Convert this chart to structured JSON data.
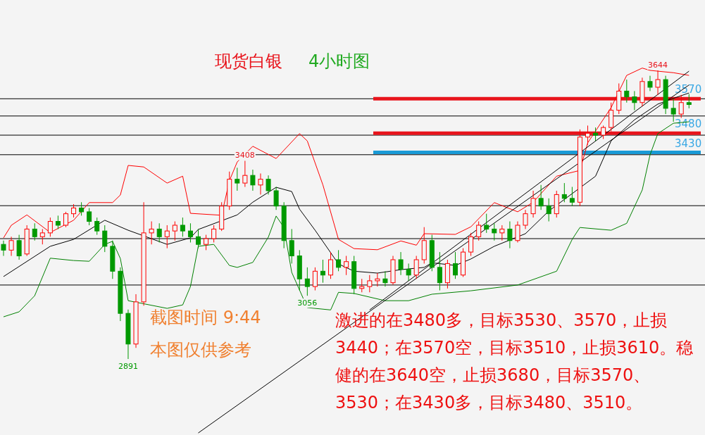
{
  "chart_data": {
    "type": "candlestick",
    "title": "现货白银",
    "subtitle": "4小时图",
    "categories": [
      null,
      null,
      null,
      null,
      null,
      null,
      null,
      null,
      null,
      null,
      null,
      null,
      null,
      null,
      null,
      null,
      null,
      null,
      null,
      null,
      null,
      null,
      null,
      null,
      null,
      null,
      null,
      null,
      null,
      null,
      null,
      null,
      null,
      null,
      null,
      null,
      null,
      null,
      null,
      null,
      null,
      null,
      null,
      null,
      null,
      null,
      null,
      null,
      null,
      null,
      null,
      null,
      null,
      null,
      null,
      null,
      null,
      null,
      null,
      null,
      null,
      null,
      null,
      null,
      null,
      null,
      null,
      null,
      null,
      null,
      null,
      null,
      null,
      null,
      null,
      null,
      null,
      null,
      null,
      null,
      null,
      null,
      null,
      null,
      null,
      null,
      null,
      null,
      null
    ],
    "ohlc": [
      [
        3190,
        3200,
        3160,
        3175
      ],
      [
        3175,
        3210,
        3160,
        3200
      ],
      [
        3200,
        3215,
        3150,
        3160
      ],
      [
        3165,
        3240,
        3160,
        3230
      ],
      [
        3230,
        3245,
        3200,
        3210
      ],
      [
        3210,
        3230,
        3190,
        3220
      ],
      [
        3220,
        3260,
        3210,
        3250
      ],
      [
        3250,
        3265,
        3230,
        3240
      ],
      [
        3240,
        3275,
        3235,
        3270
      ],
      [
        3270,
        3295,
        3260,
        3285
      ],
      [
        3285,
        3300,
        3265,
        3275
      ],
      [
        3275,
        3285,
        3240,
        3250
      ],
      [
        3250,
        3260,
        3215,
        3225
      ],
      [
        3225,
        3240,
        3170,
        3185
      ],
      [
        3185,
        3200,
        3100,
        3120
      ],
      [
        3120,
        3130,
        2990,
        3010
      ],
      [
        3010,
        3020,
        2891,
        2930
      ],
      [
        2930,
        3060,
        2920,
        3040
      ],
      [
        3040,
        3300,
        3030,
        3220
      ],
      [
        3220,
        3250,
        3190,
        3230
      ],
      [
        3230,
        3245,
        3195,
        3210
      ],
      [
        3210,
        3240,
        3180,
        3225
      ],
      [
        3225,
        3250,
        3200,
        3240
      ],
      [
        3240,
        3260,
        3210,
        3225
      ],
      [
        3225,
        3245,
        3195,
        3210
      ],
      [
        3210,
        3230,
        3180,
        3190
      ],
      [
        3190,
        3215,
        3175,
        3205
      ],
      [
        3205,
        3240,
        3195,
        3230
      ],
      [
        3230,
        3300,
        3225,
        3290
      ],
      [
        3290,
        3380,
        3280,
        3360
      ],
      [
        3360,
        3390,
        3330,
        3350
      ],
      [
        3350,
        3408,
        3340,
        3370
      ],
      [
        3370,
        3385,
        3330,
        3345
      ],
      [
        3345,
        3375,
        3320,
        3360
      ],
      [
        3360,
        3370,
        3320,
        3330
      ],
      [
        3330,
        3340,
        3280,
        3290
      ],
      [
        3290,
        3300,
        3180,
        3200
      ],
      [
        3200,
        3230,
        3140,
        3160
      ],
      [
        3160,
        3175,
        3070,
        3100
      ],
      [
        3100,
        3130,
        3056,
        3080
      ],
      [
        3080,
        3130,
        3070,
        3120
      ],
      [
        3120,
        3150,
        3090,
        3110
      ],
      [
        3110,
        3170,
        3100,
        3150
      ],
      [
        3150,
        3175,
        3120,
        3130
      ],
      [
        3130,
        3160,
        3110,
        3145
      ],
      [
        3145,
        3160,
        3060,
        3075
      ],
      [
        3075,
        3100,
        3065,
        3080
      ],
      [
        3080,
        3110,
        3065,
        3095
      ],
      [
        3095,
        3115,
        3080,
        3100
      ],
      [
        3100,
        3120,
        3080,
        3090
      ],
      [
        3090,
        3160,
        3085,
        3150
      ],
      [
        3150,
        3170,
        3110,
        3125
      ],
      [
        3125,
        3140,
        3095,
        3110
      ],
      [
        3110,
        3160,
        3100,
        3150
      ],
      [
        3150,
        3235,
        3140,
        3200
      ],
      [
        3200,
        3215,
        3120,
        3130
      ],
      [
        3130,
        3170,
        3070,
        3090
      ],
      [
        3090,
        3150,
        3075,
        3140
      ],
      [
        3140,
        3170,
        3100,
        3110
      ],
      [
        3110,
        3180,
        3105,
        3170
      ],
      [
        3170,
        3220,
        3160,
        3210
      ],
      [
        3210,
        3250,
        3200,
        3240
      ],
      [
        3240,
        3270,
        3220,
        3230
      ],
      [
        3230,
        3245,
        3200,
        3220
      ],
      [
        3220,
        3240,
        3200,
        3230
      ],
      [
        3230,
        3250,
        3180,
        3200
      ],
      [
        3200,
        3250,
        3195,
        3240
      ],
      [
        3240,
        3280,
        3230,
        3270
      ],
      [
        3270,
        3330,
        3260,
        3310
      ],
      [
        3310,
        3345,
        3280,
        3290
      ],
      [
        3290,
        3310,
        3250,
        3270
      ],
      [
        3270,
        3330,
        3260,
        3320
      ],
      [
        3320,
        3350,
        3300,
        3310
      ],
      [
        3310,
        3340,
        3290,
        3300
      ],
      [
        3300,
        3490,
        3290,
        3470
      ],
      [
        3470,
        3500,
        3450,
        3480
      ],
      [
        3480,
        3495,
        3460,
        3475
      ],
      [
        3475,
        3500,
        3465,
        3495
      ],
      [
        3495,
        3560,
        3485,
        3540
      ],
      [
        3540,
        3610,
        3530,
        3590
      ],
      [
        3590,
        3620,
        3560,
        3575
      ],
      [
        3575,
        3590,
        3540,
        3560
      ],
      [
        3560,
        3625,
        3550,
        3615
      ],
      [
        3615,
        3630,
        3590,
        3600
      ],
      [
        3600,
        3644,
        3580,
        3620
      ],
      [
        3620,
        3630,
        3530,
        3545
      ],
      [
        3545,
        3570,
        3510,
        3530
      ],
      [
        3530,
        3580,
        3520,
        3560
      ],
      [
        3560,
        3582,
        3545,
        3555
      ]
    ],
    "series": [
      {
        "type": "line",
        "color": "#ff0000",
        "values": [
          3207,
          3240,
          null,
          3267,
          null,
          null,
          3221,
          null,
          null,
          3253,
          null,
          3299,
          null,
          null,
          3299,
          3319,
          3396,
          null,
          3392,
          null,
          null,
          3350,
          null,
          3368,
          3271,
          null,
          null,
          null,
          3266,
          3356,
          3405,
          null,
          3446,
          null,
          null,
          3414,
          null,
          null,
          3479,
          3460,
          null,
          3345,
          null,
          3203,
          null,
          3179,
          null,
          null,
          3176,
          null,
          null,
          3199,
          null,
          3188,
          3218,
          null,
          null,
          null,
          3216,
          null,
          3236,
          null,
          null,
          3299,
          null,
          null,
          3275,
          null,
          3300,
          null,
          null,
          3368,
          null,
          null,
          3383,
          3455,
          null,
          null,
          3547,
          null,
          3631,
          null,
          3650,
          3644,
          null,
          null,
          3638,
          null,
          3631
        ]
      },
      {
        "type": "line",
        "color": "#000000",
        "values": [
          3106,
          null,
          null,
          null,
          null,
          null,
          3185,
          null,
          null,
          3203,
          null,
          null,
          null,
          3253,
          null,
          null,
          3227,
          null,
          null,
          null,
          null,
          3190,
          null,
          null,
          3207,
          3229,
          null,
          null,
          null,
          null,
          3267,
          null,
          3300,
          null,
          null,
          3339,
          null,
          3328,
          3282,
          null,
          3227,
          null,
          null,
          3139,
          null,
          3120,
          null,
          null,
          3115,
          null,
          null,
          3124,
          null,
          null,
          3130,
          3142,
          null,
          null,
          3135,
          null,
          3152,
          null,
          null,
          3185,
          null,
          null,
          null,
          3218,
          null,
          null,
          3277,
          null,
          null,
          null,
          null,
          null,
          3368,
          null,
          3460,
          null,
          null,
          3515,
          null,
          null,
          3556,
          null,
          3571,
          null,
          3585
        ]
      },
      {
        "type": "line",
        "color": "#008000",
        "values": [
          3001,
          null,
          3014,
          null,
          3056,
          null,
          3154,
          null,
          null,
          3148,
          null,
          3146,
          null,
          3190,
          3198,
          3153,
          3043,
          null,
          null,
          null,
          null,
          3023,
          null,
          3032,
          3080,
          3185,
          null,
          3190,
          null,
          3135,
          3130,
          null,
          3143,
          null,
          3209,
          3264,
          3234,
          3117,
          null,
          3025,
          null,
          null,
          3019,
          3065,
          null,
          3062,
          null,
          null,
          null,
          3043,
          null,
          null,
          3043,
          null,
          null,
          3060,
          null,
          null,
          null,
          null,
          3069,
          null,
          null,
          null,
          null,
          null,
          3084,
          null,
          null,
          null,
          null,
          3120,
          null,
          3203,
          3234,
          null,
          null,
          null,
          3227,
          null,
          3245,
          null,
          3332,
          3424,
          3479,
          null,
          3506,
          null,
          3510
        ]
      },
      {
        "type": "line",
        "color": "#000000",
        "values": [
          null,
          null,
          null,
          null,
          null,
          null,
          null,
          null,
          null,
          null,
          null,
          null,
          null,
          null,
          null,
          null,
          null,
          null,
          null,
          null,
          null,
          null,
          null,
          null,
          null,
          2698,
          null,
          null,
          null,
          null,
          null,
          null,
          null,
          null,
          null,
          null,
          null,
          null,
          null,
          null,
          null,
          null,
          null,
          null,
          null,
          null,
          null,
          null,
          null,
          null,
          null,
          null,
          null,
          null,
          null,
          null,
          null,
          null,
          null,
          null,
          null,
          null,
          null,
          null,
          null,
          null,
          null,
          null,
          null,
          null,
          null,
          null,
          null,
          null,
          null,
          null,
          null,
          null,
          null,
          null,
          null,
          null,
          null,
          null,
          null,
          null,
          null,
          null,
          3606
        ]
      },
      {
        "type": "line",
        "color": "#000000",
        "values": [
          null,
          null,
          null,
          null,
          null,
          null,
          null,
          null,
          null,
          null,
          null,
          null,
          null,
          null,
          null,
          null,
          null,
          null,
          null,
          null,
          null,
          null,
          null,
          null,
          null,
          null,
          null,
          null,
          null,
          null,
          null,
          null,
          null,
          null,
          null,
          null,
          null,
          null,
          null,
          null,
          null,
          null,
          null,
          null,
          null,
          null,
          null,
          3019,
          null,
          null,
          null,
          null,
          null,
          null,
          null,
          null,
          null,
          null,
          null,
          null,
          null,
          null,
          null,
          null,
          null,
          null,
          null,
          null,
          null,
          null,
          null,
          null,
          null,
          null,
          null,
          null,
          null,
          null,
          null,
          null,
          null,
          null,
          null,
          null,
          null,
          null,
          null,
          null,
          3642
        ]
      }
    ],
    "ref_lines": [
      {
        "axis": "y",
        "value": 3570,
        "color": "#000000"
      },
      {
        "axis": "y",
        "value": 3525,
        "color": "#000000"
      },
      {
        "axis": "y",
        "value": 3475,
        "color": "#000000"
      },
      {
        "axis": "y",
        "value": 3424,
        "color": "#000000"
      },
      {
        "axis": "y",
        "value": 3291,
        "color": "#000000"
      },
      {
        "axis": "y",
        "value": 3205,
        "color": "#000000"
      },
      {
        "axis": "y",
        "value": 3084,
        "color": "#000000"
      },
      {
        "axis": "y",
        "value": 3570,
        "label": "3570",
        "color": "#e8141c"
      },
      {
        "axis": "y",
        "value": 3480,
        "label": "3480",
        "color": "#e8141c"
      },
      {
        "axis": "y",
        "value": 3430,
        "label": "3430",
        "color": "#1a9ad6"
      }
    ],
    "annotations": [
      {
        "text": "3644",
        "y": 3644
      },
      {
        "text": "3408",
        "y": 3408
      },
      {
        "text": "3056",
        "y": 3056
      },
      {
        "text": "2891",
        "y": 2891
      },
      "截图时间 9:44",
      "本图仅供参考",
      "激进的在3480多，目标3530、3570，止损3440；在3570空，目标3510，止损3610。稳健的在3640空，止损3680，目标3570、3530；在3430多，目标3480、3510。"
    ]
  }
}
